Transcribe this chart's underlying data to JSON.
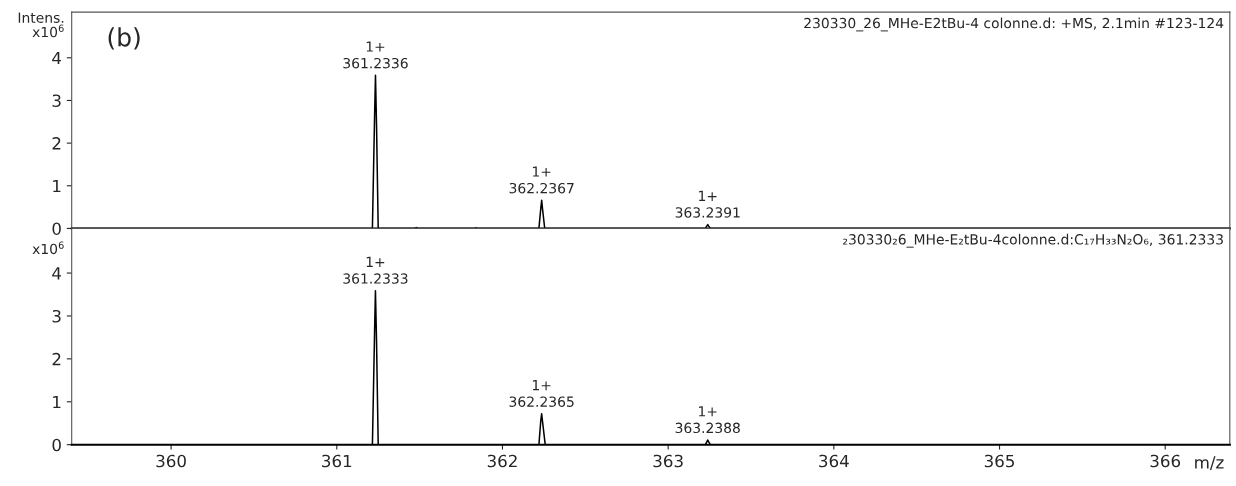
{
  "chart_data": [
    {
      "type": "line",
      "title": "230330_26_MHe-E2tBu-4 colonne.d: +MS, 2.1min #123-124",
      "ylabel": "Intens.\nx10$^{6}$",
      "series": [
        {
          "color": "#000000",
          "x": [
            359.4,
            361.215,
            361.228,
            361.2336,
            361.24,
            361.25,
            361.47,
            361.48,
            361.49,
            361.83,
            361.84,
            361.85,
            362.22,
            362.232,
            362.2367,
            362.242,
            362.255,
            363.225,
            363.234,
            363.2391,
            363.244,
            363.255,
            366.39
          ],
          "values": [
            0,
            0,
            2.6,
            3.59,
            2.4,
            0,
            0,
            0.02,
            0,
            0,
            0.01,
            0,
            0,
            0.5,
            0.66,
            0.45,
            0,
            0,
            0.06,
            0.09,
            0.06,
            0,
            0
          ]
        }
      ],
      "xlim": [
        359.4,
        366.39
      ],
      "xticks": [
        360,
        361,
        362,
        363,
        364,
        365,
        366
      ],
      "ylim": [
        0,
        5.07
      ],
      "yticks": [
        0,
        1,
        2,
        3,
        4
      ],
      "tick_labels": "y",
      "grid": false,
      "annotations": [
        "(b)",
        {
          "text": "1+\n361.2336",
          "x": 361.2336,
          "y": 3.59
        },
        {
          "text": "1+\n362.2367",
          "x": 362.2367,
          "y": 0.66
        },
        {
          "text": "1+\n363.2391",
          "x": 363.2391,
          "y": 0.09
        }
      ]
    },
    {
      "type": "line",
      "title": "₂30330₂6_MHe-E₂tBu-4colonne.d:C₁₇H₃₃N₂O₆, 361.2333",
      "ylabel": "x10$^{6}$",
      "xlabel": "m/z",
      "series": [
        {
          "color": "#000000",
          "x": [
            359.4,
            361.215,
            361.228,
            361.2333,
            361.24,
            361.25,
            362.22,
            362.231,
            362.2365,
            362.243,
            362.258,
            363.225,
            363.234,
            363.2388,
            363.244,
            363.255,
            364.3
          ],
          "values": [
            0,
            0,
            2.6,
            3.59,
            2.4,
            0,
            0,
            0.55,
            0.72,
            0.5,
            0,
            0,
            0.07,
            0.11,
            0.07,
            0,
            0
          ]
        }
      ],
      "xlim": [
        359.4,
        366.39
      ],
      "xticks": [
        360,
        361,
        362,
        363,
        364,
        365,
        366
      ],
      "ylim": [
        0,
        5.04
      ],
      "yticks": [
        0,
        1,
        2,
        3,
        4
      ],
      "grid": false,
      "annotations": [
        {
          "text": "1+\n361.2333",
          "x": 361.2333,
          "y": 3.59
        },
        {
          "text": "1+\n362.2365",
          "x": 362.2365,
          "y": 0.72
        },
        {
          "text": "1+\n363.2388",
          "x": 363.2388,
          "y": 0.11
        }
      ]
    }
  ]
}
